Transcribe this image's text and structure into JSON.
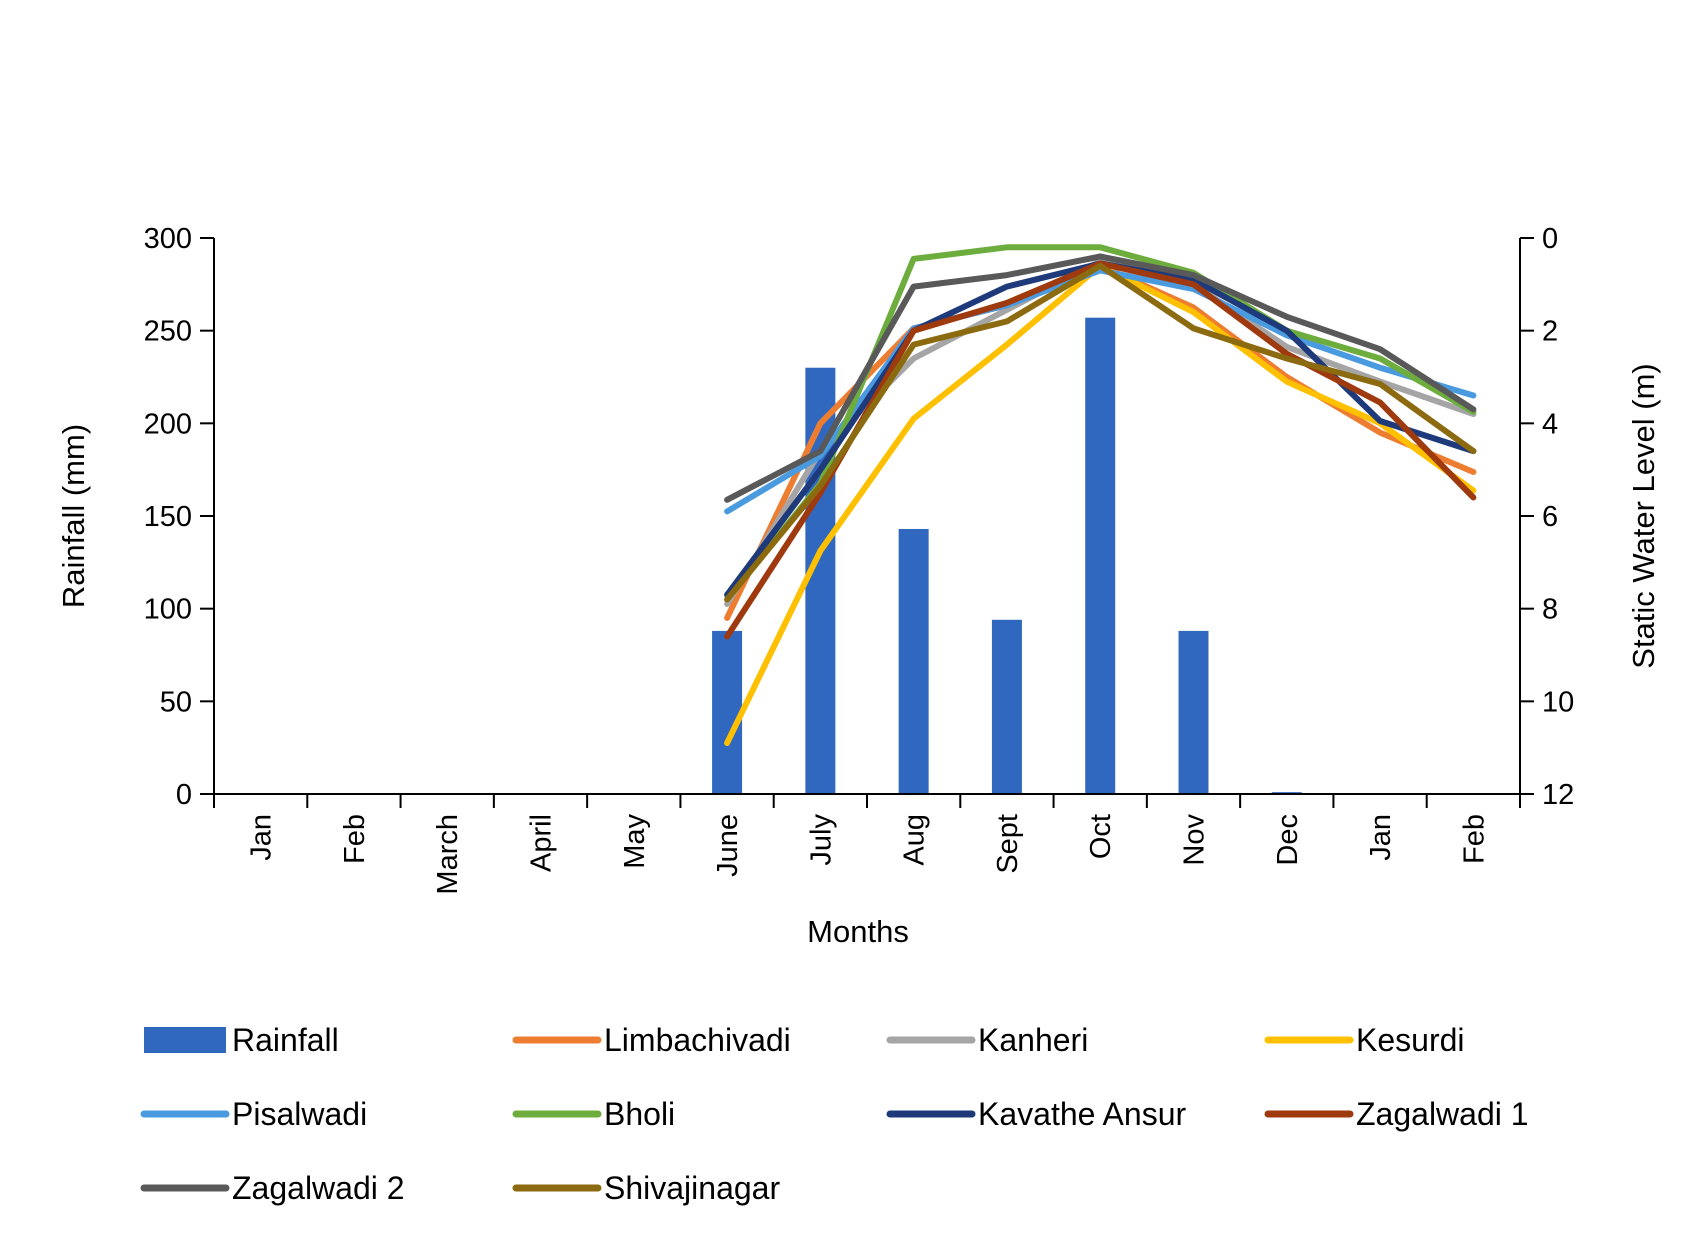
{
  "chart_data": {
    "type": "bar+line",
    "categories": [
      "Jan",
      "Feb",
      "March",
      "April",
      "May",
      "June",
      "July",
      "Aug",
      "Sept",
      "Oct",
      "Nov",
      "Dec",
      "Jan",
      "Feb"
    ],
    "xlabel": "Months",
    "ylabel_left": "Rainfall (mm)",
    "ylabel_right": "Static Water Level (m)",
    "ylim_left": [
      0,
      300
    ],
    "yticks_left": [
      0,
      50,
      100,
      150,
      200,
      250,
      300
    ],
    "ylim_right": [
      12,
      0
    ],
    "yticks_right": [
      0,
      2,
      4,
      6,
      8,
      10,
      12
    ],
    "right_axis_inverted": true,
    "grid": false,
    "legend_position": "bottom",
    "bar_series": {
      "name": "Rainfall",
      "color": "#3068C0",
      "values": [
        null,
        null,
        null,
        null,
        null,
        88,
        230,
        143,
        94,
        257,
        88,
        1,
        null,
        null
      ]
    },
    "line_series": [
      {
        "name": "Limbachivadi",
        "color": "#ED7D31",
        "values": [
          null,
          null,
          null,
          null,
          null,
          8.2,
          4.0,
          1.95,
          1.45,
          0.6,
          1.5,
          3.0,
          4.2,
          5.05
        ]
      },
      {
        "name": "Kanheri",
        "color": "#A5A5A5",
        "values": [
          null,
          null,
          null,
          null,
          null,
          7.9,
          4.6,
          2.6,
          1.55,
          0.5,
          1.0,
          2.35,
          3.1,
          3.8
        ]
      },
      {
        "name": "Kesurdi",
        "color": "#FFC000",
        "values": [
          null,
          null,
          null,
          null,
          null,
          10.9,
          6.75,
          3.9,
          2.3,
          0.6,
          1.6,
          3.1,
          4.0,
          5.45
        ]
      },
      {
        "name": "Pisalwadi",
        "color": "#4A9AE0",
        "values": [
          null,
          null,
          null,
          null,
          null,
          5.9,
          4.7,
          1.95,
          1.45,
          0.7,
          1.1,
          2.1,
          2.8,
          3.4
        ]
      },
      {
        "name": "Bholi",
        "color": "#6DAD3E",
        "values": [
          null,
          null,
          null,
          null,
          null,
          7.8,
          5.3,
          0.45,
          0.2,
          0.2,
          0.75,
          2.0,
          2.6,
          3.75
        ]
      },
      {
        "name": "Kavathe Ansur",
        "color": "#1F3A7A",
        "values": [
          null,
          null,
          null,
          null,
          null,
          7.7,
          5.0,
          2.0,
          1.05,
          0.55,
          0.9,
          2.0,
          3.95,
          4.6
        ]
      },
      {
        "name": "Zagalwadi 1",
        "color": "#9E3A0E",
        "values": [
          null,
          null,
          null,
          null,
          null,
          8.6,
          5.5,
          2.0,
          1.4,
          0.55,
          1.0,
          2.5,
          3.55,
          5.6
        ]
      },
      {
        "name": "Zagalwadi 2",
        "color": "#595959",
        "values": [
          null,
          null,
          null,
          null,
          null,
          5.65,
          4.6,
          1.05,
          0.8,
          0.4,
          0.8,
          1.7,
          2.4,
          3.7
        ]
      },
      {
        "name": "Shivajinagar",
        "color": "#8C6A10",
        "values": [
          null,
          null,
          null,
          null,
          null,
          7.8,
          5.35,
          2.3,
          1.8,
          0.6,
          1.95,
          2.6,
          3.15,
          4.6
        ]
      }
    ]
  }
}
